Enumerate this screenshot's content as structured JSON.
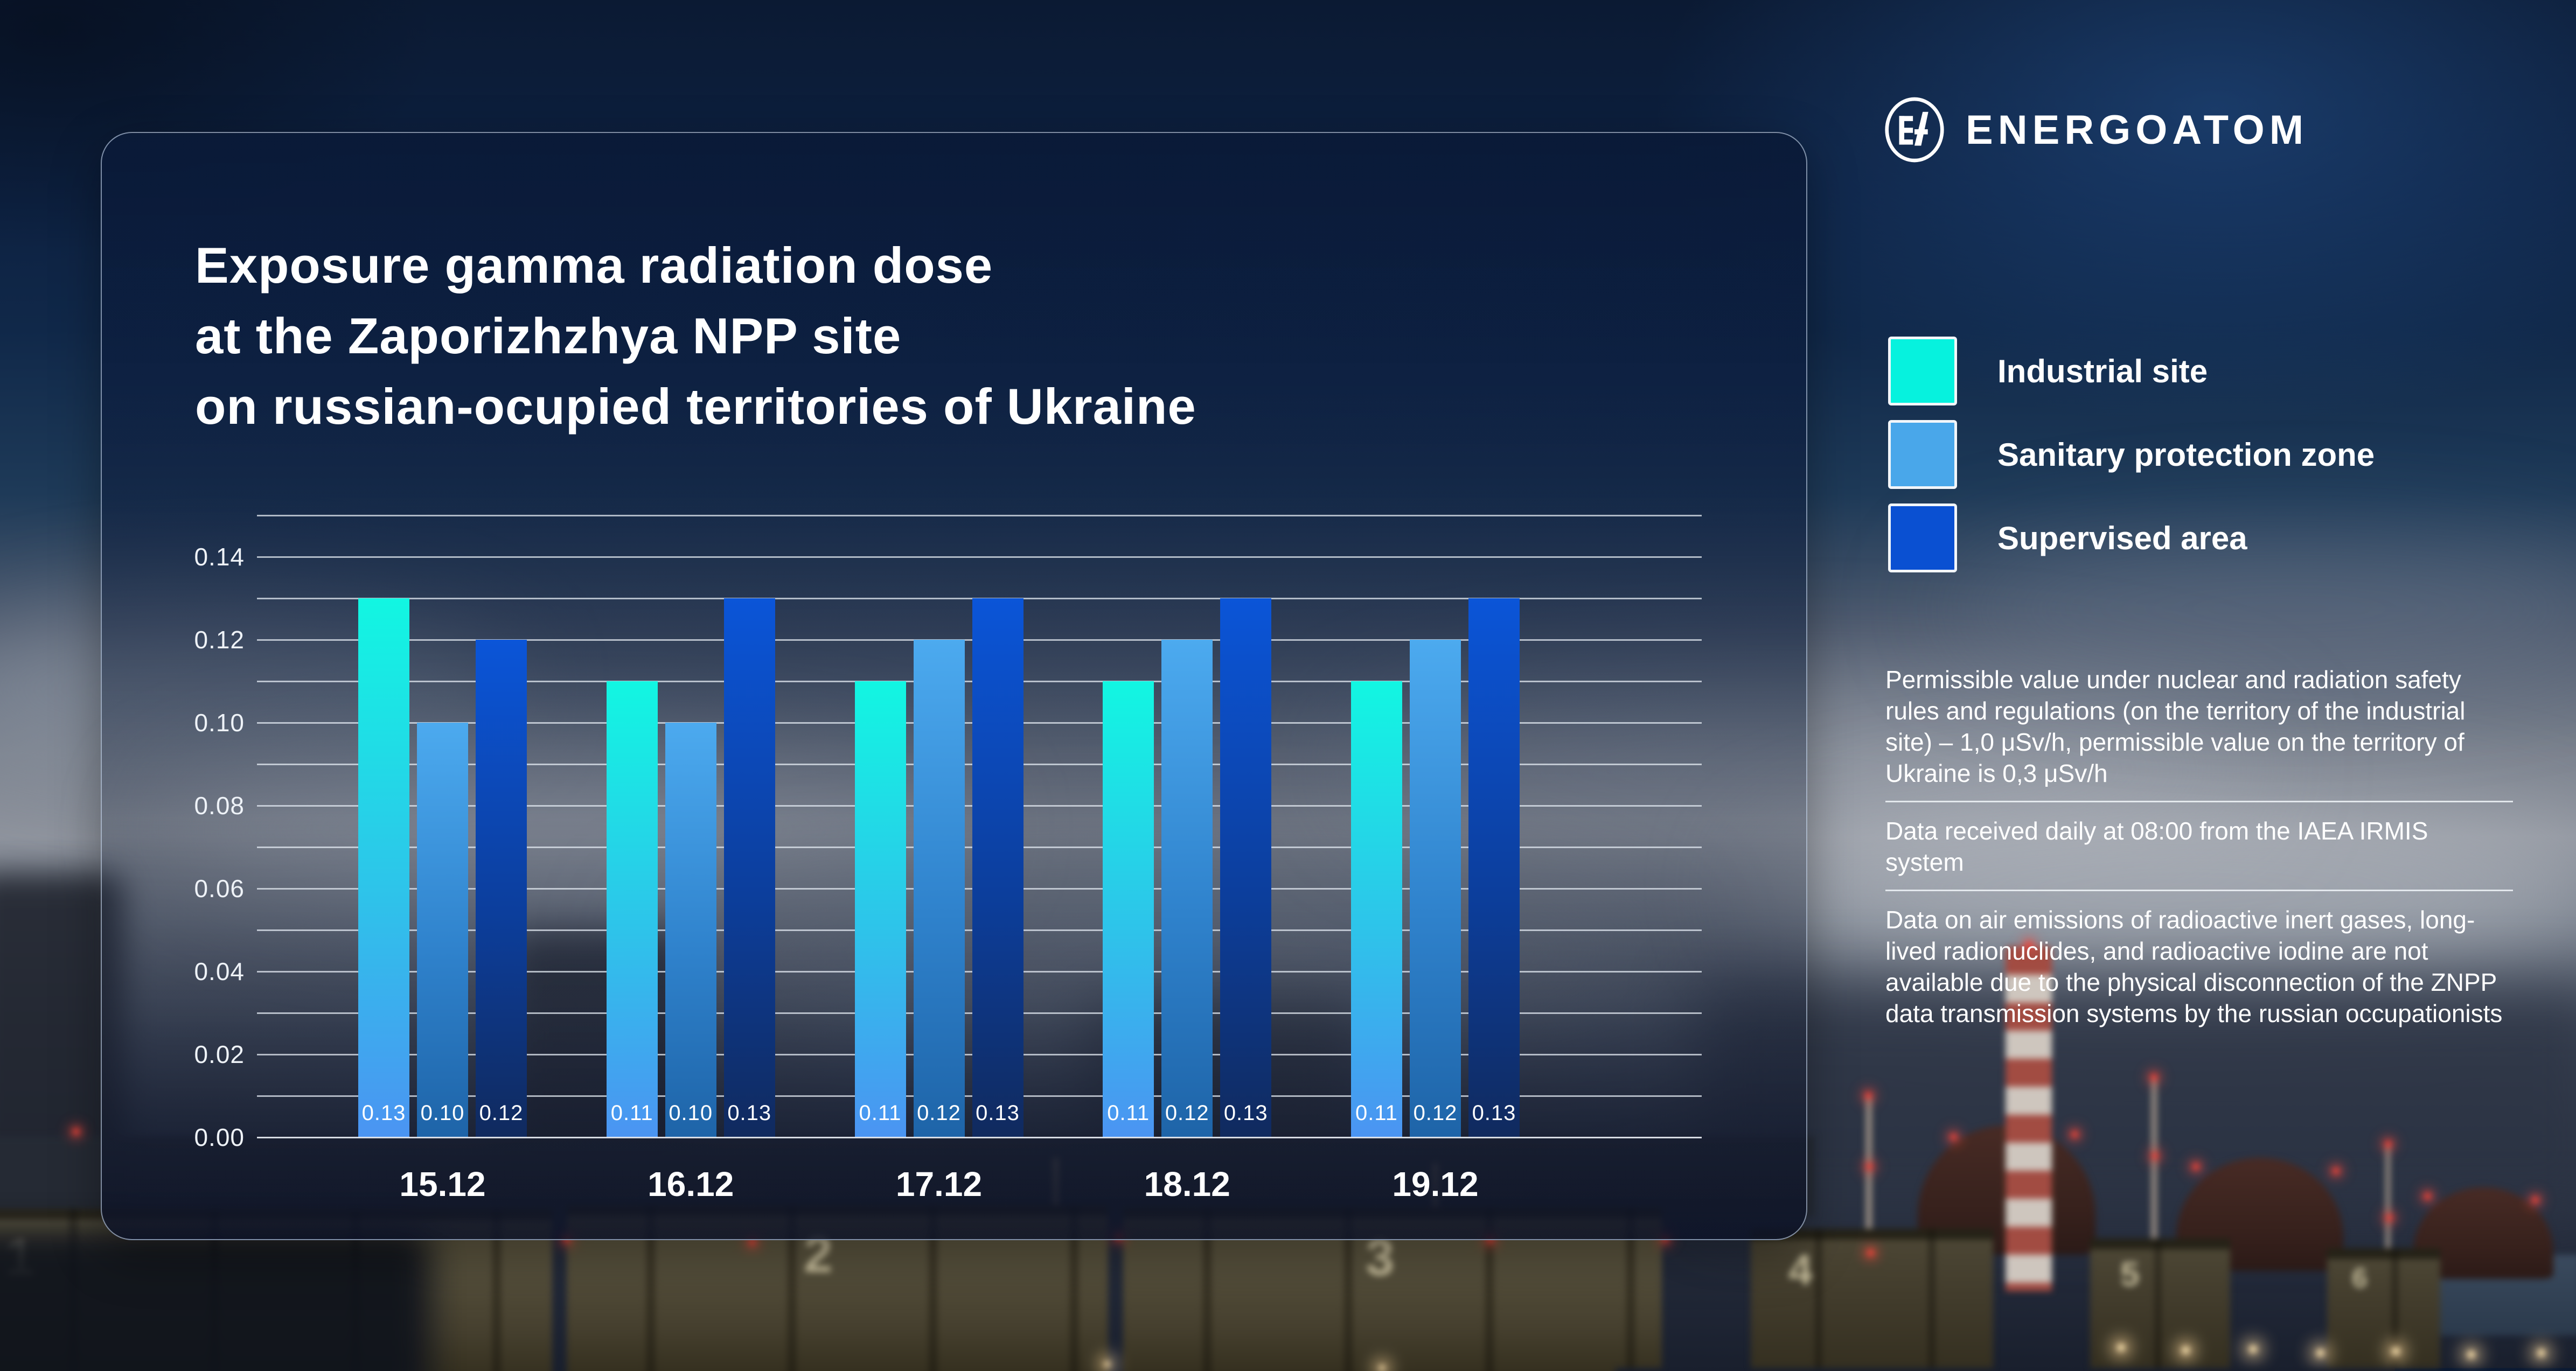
{
  "logo": {
    "text": "ENERGOATOM",
    "icon": "energoatom-monogram-circle"
  },
  "title": {
    "lines": [
      "Exposure gamma radiation dose",
      "at the Zaporizhzhya NPP site",
      "on russian-ocupied territories of Ukraine"
    ]
  },
  "legend": [
    {
      "label": "Industrial site",
      "swatch": "#06f2de"
    },
    {
      "label": "Sanitary protection zone",
      "swatch": "#49a7ea"
    },
    {
      "label": "Supervised area",
      "swatch": "#0a50d2"
    }
  ],
  "notes": [
    {
      "text": "Permissible value under nuclear and radiation safety rules and regulations (on the territory of the industrial site) – 1,0 μSv/h, permissible value on the territory of Ukraine is 0,3 μSv/h"
    },
    {
      "text": "Data received daily at 08:00 from the IAEA IRMIS system"
    },
    {
      "text": "Data on air emissions of radioactive inert gases, long-lived radionuclides, and radioactive iodine are not available due to the physical disconnection of the ZNPP data transmission systems by the russian occupationists"
    }
  ],
  "chart_data": {
    "type": "bar",
    "categories": [
      "15.12",
      "16.12",
      "17.12",
      "18.12",
      "19.12"
    ],
    "series": [
      {
        "name": "Industrial site",
        "values": [
          0.13,
          0.11,
          0.11,
          0.11,
          0.11
        ]
      },
      {
        "name": "Sanitary protection zone",
        "values": [
          0.1,
          0.1,
          0.12,
          0.12,
          0.12
        ]
      },
      {
        "name": "Supervised area",
        "values": [
          0.12,
          0.13,
          0.13,
          0.13,
          0.13
        ]
      }
    ],
    "ylim": [
      0,
      0.15
    ],
    "yticks": [
      0.0,
      0.02,
      0.04,
      0.06,
      0.08,
      0.1,
      0.12,
      0.14
    ],
    "grid_step": 0.01,
    "grid": "on",
    "legend_position": "right",
    "value_labels": "inside-bottom",
    "title": "Exposure gamma radiation dose at the Zaporizhzhya NPP site on russian-ocupied territories of Ukraine",
    "xlabel": "",
    "ylabel": ""
  },
  "chart_style": {
    "series_colors": [
      {
        "top": "#12f6e2",
        "mid": "#2ec3ea",
        "bottom": "#4b94f2"
      },
      {
        "top": "#4caaef",
        "mid": "#2f82cc",
        "bottom": "#1e64a8"
      },
      {
        "top": "#0b55d8",
        "mid": "#0c3e9c",
        "bottom": "#102a5e"
      }
    ],
    "grid_color": "rgba(226,232,240,0.75)",
    "tick_color": "#eef2f7",
    "value_label_color": "#ffffff",
    "card_border_color": "rgba(205,222,244,0.6)"
  },
  "background": {
    "unit_numbers": [
      "1",
      "2",
      "3",
      "4",
      "5",
      "6"
    ]
  }
}
